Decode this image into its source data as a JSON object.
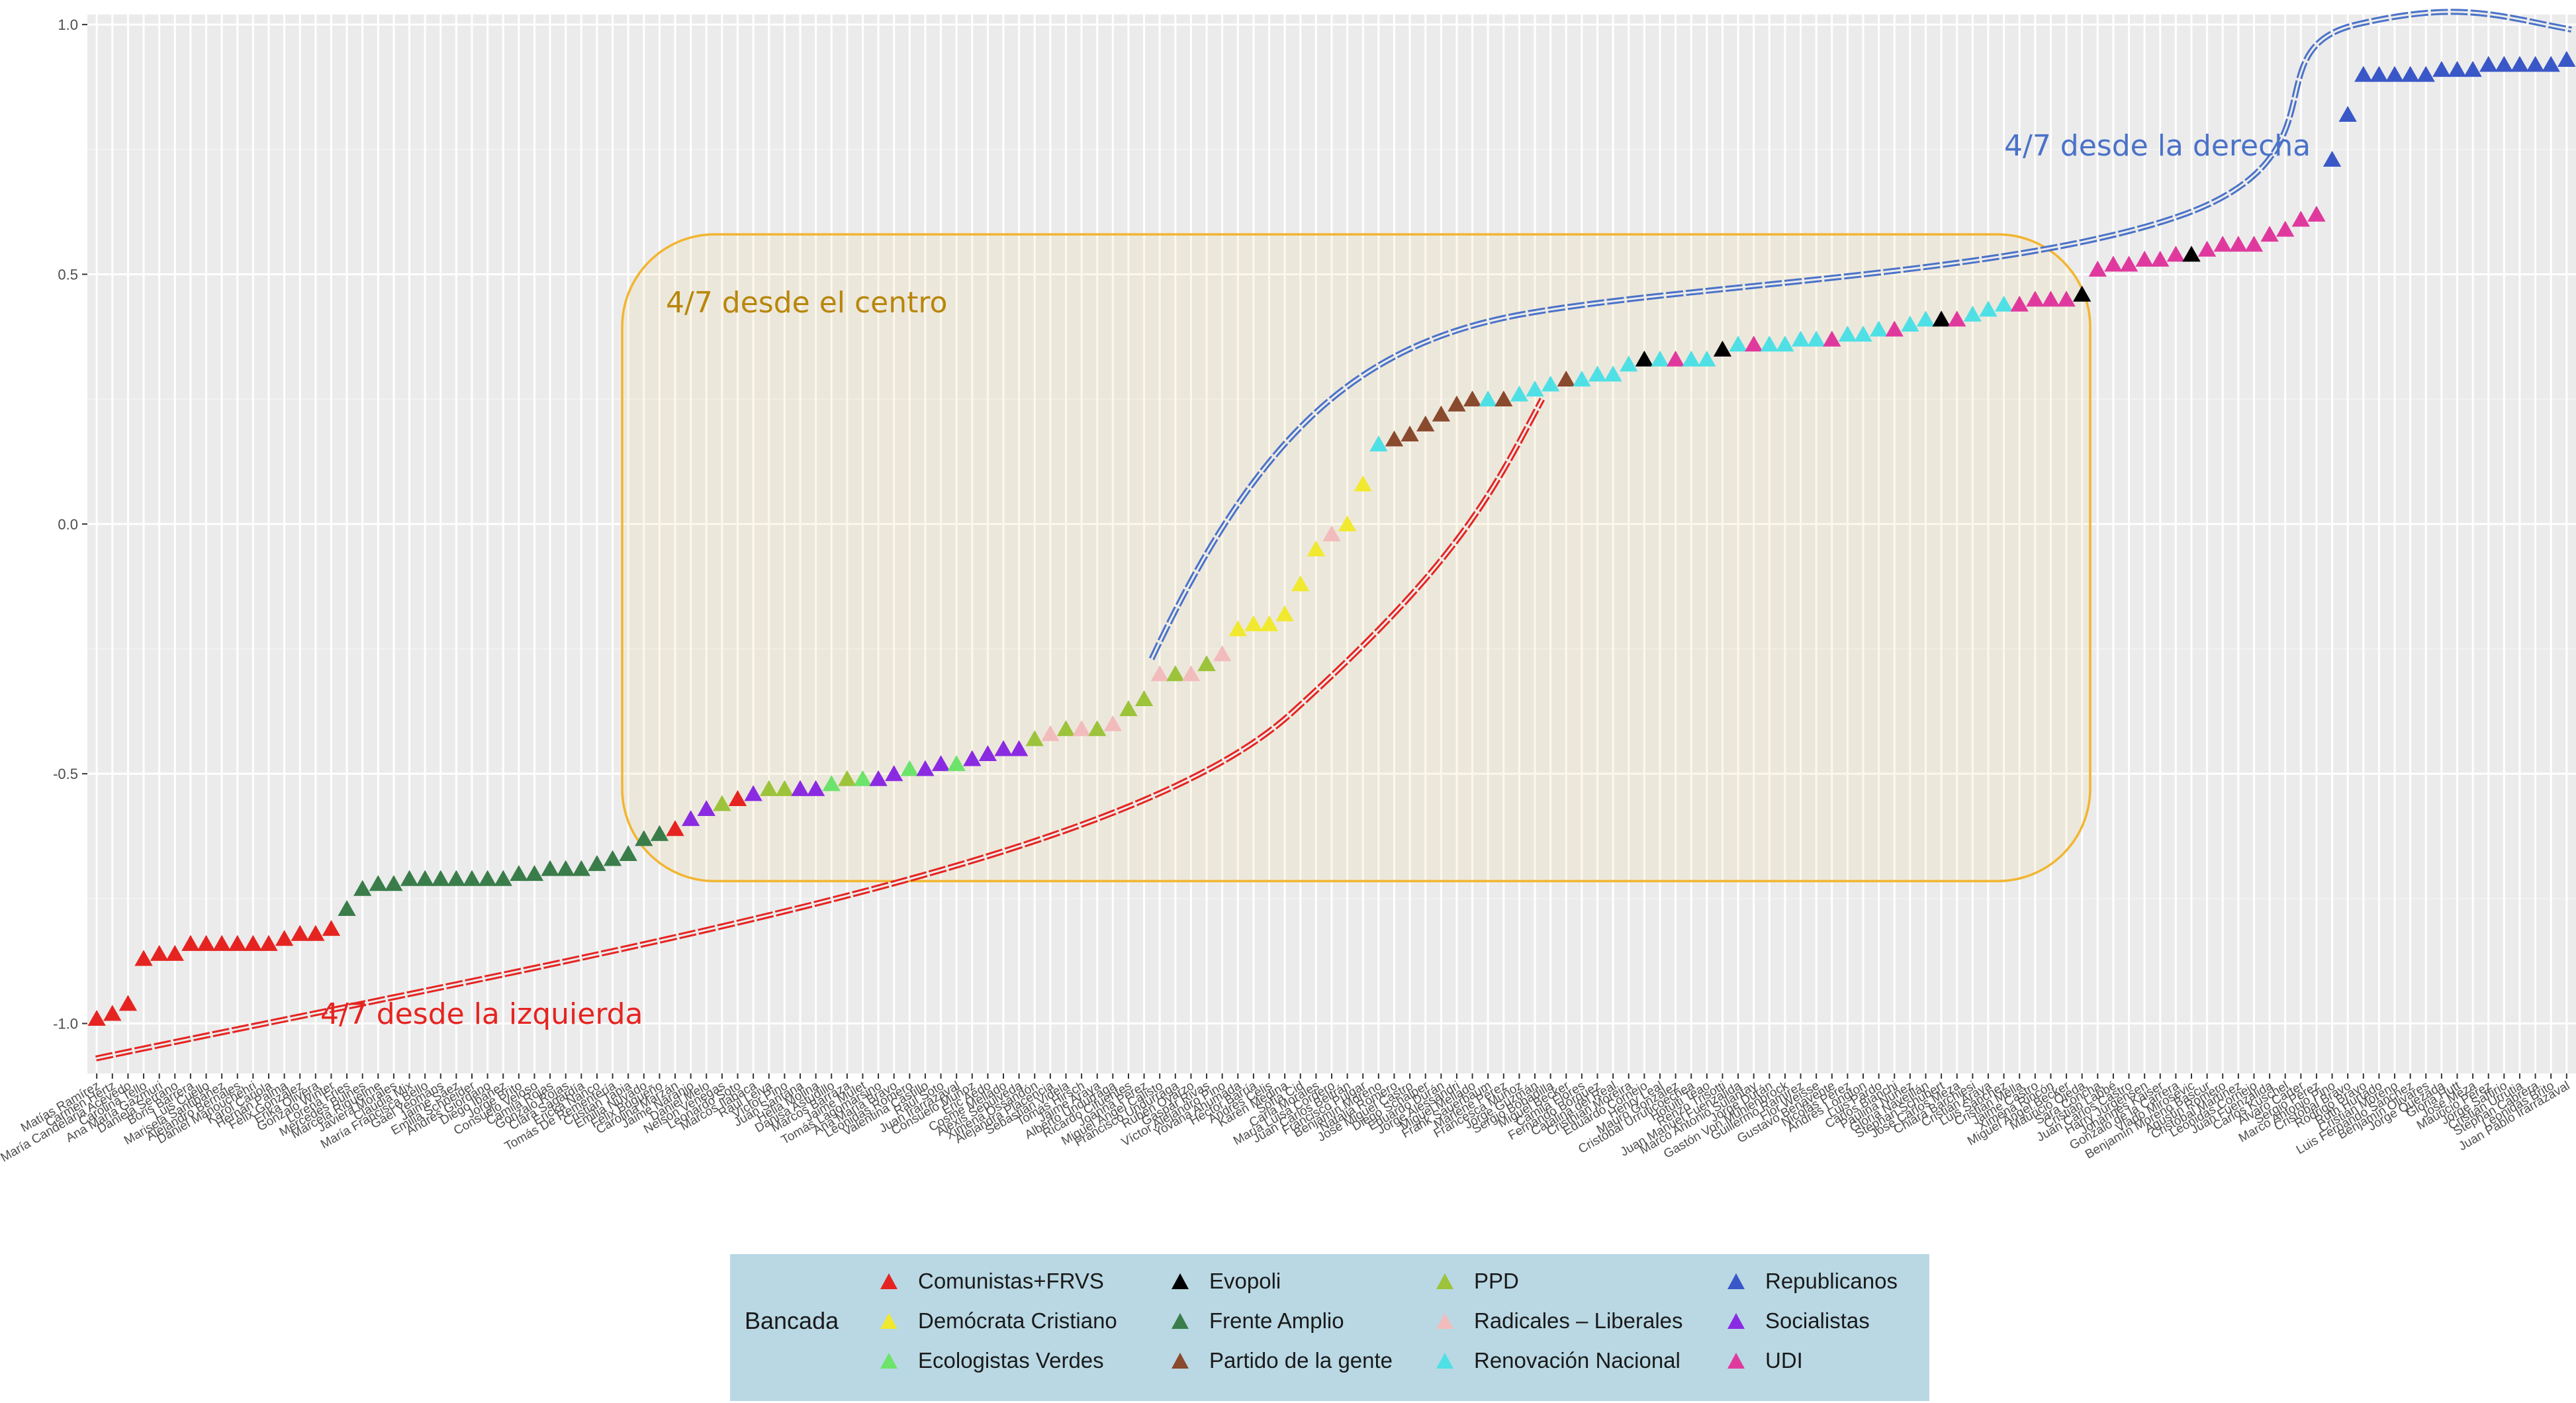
{
  "chart_data": {
    "type": "scatter",
    "title": "",
    "xlabel": "",
    "ylabel": "",
    "ylim": [
      -1.1,
      1.02
    ],
    "y_ticks": [
      "1.0",
      "0.5",
      "0.0",
      "-0.5",
      "-1.0"
    ],
    "grid": true,
    "legend_placement": "bottom",
    "legend_title": "Bancada",
    "series": [
      {
        "name": "Comunistas+FRVS",
        "color": "#e52421"
      },
      {
        "name": "Demócrata Cristiano",
        "color": "#f0e930"
      },
      {
        "name": "Ecologistas Verdes",
        "color": "#6ce36a"
      },
      {
        "name": "Evopoli",
        "color": "#000000"
      },
      {
        "name": "Frente Amplio",
        "color": "#3a7d4a"
      },
      {
        "name": "Partido de la gente",
        "color": "#8a4a2e"
      },
      {
        "name": "PPD",
        "color": "#9cc33a"
      },
      {
        "name": "Radicales – Liberales",
        "color": "#f2bcbc"
      },
      {
        "name": "Renovación Nacional",
        "color": "#4fe0e6"
      },
      {
        "name": "Republicanos",
        "color": "#3a57c8"
      },
      {
        "name": "Socialistas",
        "color": "#8a2be2"
      },
      {
        "name": "UDI",
        "color": "#e0399e"
      }
    ],
    "points": [
      {
        "label": "Matías Ramírez",
        "party": 0,
        "y": -0.99
      },
      {
        "label": "Carmen Hertz",
        "party": 0,
        "y": -0.98
      },
      {
        "label": "María Candelaria Acevedo",
        "party": 0,
        "y": -0.96
      },
      {
        "label": "Carolina Tello",
        "party": 0,
        "y": -0.87
      },
      {
        "label": "Ana María Gazmuri",
        "party": 0,
        "y": -0.86
      },
      {
        "label": "Daniela Serrano",
        "party": 0,
        "y": -0.86
      },
      {
        "label": "Boris Barrera",
        "party": 0,
        "y": -0.84
      },
      {
        "label": "Luis Cuello",
        "party": 0,
        "y": -0.84
      },
      {
        "label": "Marisela Santibáñez",
        "party": 0,
        "y": -0.84
      },
      {
        "label": "Alejandro Bernales",
        "party": 0,
        "y": -0.84
      },
      {
        "label": "Daniel Manouchehri",
        "party": 0,
        "y": -0.84
      },
      {
        "label": "Karol Cariola",
        "party": 0,
        "y": -0.84
      },
      {
        "label": "Hernán Palma",
        "party": 0,
        "y": -0.83
      },
      {
        "label": "Félix González",
        "party": 0,
        "y": -0.82
      },
      {
        "label": "Erika Olivera",
        "party": 0,
        "y": -0.82
      },
      {
        "label": "Gonzalo Winter",
        "party": 0,
        "y": -0.81
      },
      {
        "label": "Lorena Fries",
        "party": 4,
        "y": -0.77
      },
      {
        "label": "Mercedes Bulnes",
        "party": 4,
        "y": -0.73
      },
      {
        "label": "Marcela Riquelme",
        "party": 4,
        "y": -0.72
      },
      {
        "label": "Javiera Morales",
        "party": 4,
        "y": -0.72
      },
      {
        "label": "Claudia Mix",
        "party": 4,
        "y": -0.71
      },
      {
        "label": "María Francisca Bello",
        "party": 4,
        "y": -0.71
      },
      {
        "label": "Gael Yeomans",
        "party": 4,
        "y": -0.71
      },
      {
        "label": "Jaime Sáez",
        "party": 4,
        "y": -0.71
      },
      {
        "label": "Emilia Schneider",
        "party": 4,
        "y": -0.71
      },
      {
        "label": "Andrés Giordano",
        "party": 4,
        "y": -0.71
      },
      {
        "label": "Diego Ibáñez",
        "party": 4,
        "y": -0.71
      },
      {
        "label": "Jorge Brito",
        "party": 4,
        "y": -0.7
      },
      {
        "label": "Consuelo Veloso",
        "party": 4,
        "y": -0.7
      },
      {
        "label": "Camila Rojas",
        "party": 4,
        "y": -0.69
      },
      {
        "label": "Gonzalo Rojas",
        "party": 4,
        "y": -0.69
      },
      {
        "label": "Clara Sagardía",
        "party": 4,
        "y": -0.69
      },
      {
        "label": "Ericka Ñanco",
        "party": 4,
        "y": -0.68
      },
      {
        "label": "Tomás De Rementería",
        "party": 4,
        "y": -0.67
      },
      {
        "label": "Cristian Tapia",
        "party": 4,
        "y": -0.66
      },
      {
        "label": "Emilia Nuyado",
        "party": 4,
        "y": -0.63
      },
      {
        "label": "Félix Bugueño",
        "party": 4,
        "y": -0.62
      },
      {
        "label": "Carolina Marzán",
        "party": 0,
        "y": -0.61
      },
      {
        "label": "Jaime Naranjo",
        "party": 10,
        "y": -0.59
      },
      {
        "label": "Daniel Melo",
        "party": 10,
        "y": -0.57
      },
      {
        "label": "Nelson Venegas",
        "party": 6,
        "y": -0.56
      },
      {
        "label": "Leonardo Soto",
        "party": 0,
        "y": -0.55
      },
      {
        "label": "Marcos Ilabaca",
        "party": 10,
        "y": -0.54
      },
      {
        "label": "Raúl Leiva",
        "party": 6,
        "y": -0.53
      },
      {
        "label": "Víctor Pino",
        "party": 6,
        "y": -0.53
      },
      {
        "label": "Juan Santana",
        "party": 10,
        "y": -0.53
      },
      {
        "label": "Helia Molina",
        "party": 10,
        "y": -0.53
      },
      {
        "label": "Danisa Astudillo",
        "party": 2,
        "y": -0.52
      },
      {
        "label": "Marcos Barraza",
        "party": 6,
        "y": -0.51
      },
      {
        "label": "Jaime Mulet",
        "party": 2,
        "y": -0.51
      },
      {
        "label": "Tomás Lagomarsino",
        "party": 10,
        "y": -0.51
      },
      {
        "label": "Ana María Bravo",
        "party": 10,
        "y": -0.5
      },
      {
        "label": "Leonidas Romero",
        "party": 2,
        "y": -0.49
      },
      {
        "label": "Valentina Castillo",
        "party": 10,
        "y": -0.49
      },
      {
        "label": "Raúl Soto",
        "party": 10,
        "y": -0.48
      },
      {
        "label": "Juan Irarrázaval",
        "party": 2,
        "y": -0.48
      },
      {
        "label": "Consuelo Muñoz",
        "party": 10,
        "y": -0.47
      },
      {
        "label": "Eric Aedo",
        "party": 10,
        "y": -0.46
      },
      {
        "label": "Cosme Mellado",
        "party": 10,
        "y": -0.45
      },
      {
        "label": "Alexis Sepúlveda",
        "party": 10,
        "y": -0.45
      },
      {
        "label": "Ximena Ossandón",
        "party": 6,
        "y": -0.43
      },
      {
        "label": "Alejandra Placencia",
        "party": 7,
        "y": -0.42
      },
      {
        "label": "Sebastián Videla",
        "party": 6,
        "y": -0.41
      },
      {
        "label": "Tomás Hirsch",
        "party": 7,
        "y": -0.41
      },
      {
        "label": "Jaime Araya",
        "party": 6,
        "y": -0.41
      },
      {
        "label": "Alberto Undurraga",
        "party": 7,
        "y": -0.4
      },
      {
        "label": "Ricardo Cifuentes",
        "party": 6,
        "y": -0.37
      },
      {
        "label": "Joanna Pérez",
        "party": 6,
        "y": -0.35
      },
      {
        "label": "Miguel Ángel Calisto",
        "party": 7,
        "y": -0.3
      },
      {
        "label": "Francisco Undurraga",
        "party": 6,
        "y": -0.3
      },
      {
        "label": "Rubén Oyarzo",
        "party": 7,
        "y": -0.3
      },
      {
        "label": "Gaspar Rivas",
        "party": 6,
        "y": -0.28
      },
      {
        "label": "Víctor Alejandro Pino",
        "party": 7,
        "y": -0.26
      },
      {
        "label": "Yovana Ahumada",
        "party": 1,
        "y": -0.21
      },
      {
        "label": "Héctor Barría",
        "party": 1,
        "y": -0.2
      },
      {
        "label": "Andrés Celis",
        "party": 1,
        "y": -0.2
      },
      {
        "label": "Karen Medina",
        "party": 1,
        "y": -0.18
      },
      {
        "label": "Sofía Cid",
        "party": 1,
        "y": -0.12
      },
      {
        "label": "Carla Morales",
        "party": 1,
        "y": -0.05
      },
      {
        "label": "María Luisa Cordero",
        "party": 7,
        "y": -0.02
      },
      {
        "label": "Juan Carlos Beltrán",
        "party": 1,
        "y": 0.0
      },
      {
        "label": "Francisco Pulgar",
        "party": 1,
        "y": 0.08
      },
      {
        "label": "Benjamín Moreno",
        "party": 8,
        "y": 0.16
      },
      {
        "label": "Natalia Romero",
        "party": 5,
        "y": 0.17
      },
      {
        "label": "José Miguel Castro",
        "party": 5,
        "y": 0.18
      },
      {
        "label": "Diego Schalper",
        "party": 5,
        "y": 0.2
      },
      {
        "label": "Eduardo Durán",
        "party": 5,
        "y": 0.22
      },
      {
        "label": "Jorge Alessandri",
        "party": 5,
        "y": 0.24
      },
      {
        "label": "Miguel Mellado",
        "party": 5,
        "y": 0.25
      },
      {
        "label": "Frank Sauerbaum",
        "party": 8,
        "y": 0.25
      },
      {
        "label": "Marlene Pérez",
        "party": 5,
        "y": 0.25
      },
      {
        "label": "Francesca Muñoz",
        "party": 8,
        "y": 0.26
      },
      {
        "label": "Jorge Guzmán",
        "party": 8,
        "y": 0.27
      },
      {
        "label": "Sergio Bobadilla",
        "party": 8,
        "y": 0.28
      },
      {
        "label": "Miguel Becker",
        "party": 5,
        "y": 0.29
      },
      {
        "label": "Camila Flores",
        "party": 8,
        "y": 0.29
      },
      {
        "label": "Fernando Bórquez",
        "party": 8,
        "y": 0.3
      },
      {
        "label": "Catalina del Real",
        "party": 8,
        "y": 0.3
      },
      {
        "label": "Cristhian Moreira",
        "party": 8,
        "y": 0.32
      },
      {
        "label": "Eduardo Cornejo",
        "party": 3,
        "y": 0.33
      },
      {
        "label": "Henry Leal",
        "party": 8,
        "y": 0.33
      },
      {
        "label": "Mauro González",
        "party": 11,
        "y": 0.33
      },
      {
        "label": "Cristóbal Urruticoechea",
        "party": 8,
        "y": 0.33
      },
      {
        "label": "Hotuiti Teao",
        "party": 8,
        "y": 0.33
      },
      {
        "label": "Renzo Trisotti",
        "party": 3,
        "y": 0.35
      },
      {
        "label": "Juan Manuel Fuenzalida",
        "party": 8,
        "y": 0.36
      },
      {
        "label": "Marco Antonio Sulantay",
        "party": 11,
        "y": 0.36
      },
      {
        "label": "Jorge Durán",
        "party": 8,
        "y": 0.36
      },
      {
        "label": "Gastón Von Mühlenbrock",
        "party": 8,
        "y": 0.36
      },
      {
        "label": "Guillermo Ramírez",
        "party": 8,
        "y": 0.37
      },
      {
        "label": "Flor Weisse",
        "party": 8,
        "y": 0.37
      },
      {
        "label": "Gustavo Benavente",
        "party": 11,
        "y": 0.37
      },
      {
        "label": "Nicolás Pérez",
        "party": 8,
        "y": 0.38
      },
      {
        "label": "Andrés Longton",
        "party": 8,
        "y": 0.38
      },
      {
        "label": "Luis Pardo",
        "party": 8,
        "y": 0.39
      },
      {
        "label": "Carlos Bianchi",
        "party": 11,
        "y": 0.39
      },
      {
        "label": "Paulina Núñez",
        "party": 8,
        "y": 0.4
      },
      {
        "label": "Gloria Naveillán",
        "party": 8,
        "y": 0.41
      },
      {
        "label": "Stephan Schubert",
        "party": 3,
        "y": 0.41
      },
      {
        "label": "José Carlos Meza",
        "party": 11,
        "y": 0.41
      },
      {
        "label": "Chiara Barchiesi",
        "party": 8,
        "y": 0.42
      },
      {
        "label": "Cristián Araya",
        "party": 8,
        "y": 0.43
      },
      {
        "label": "Luis Sánchez",
        "party": 8,
        "y": 0.44
      },
      {
        "label": "Cristián Mella",
        "party": 11,
        "y": 0.44
      },
      {
        "label": "Jaime Castro",
        "party": 11,
        "y": 0.45
      },
      {
        "label": "Ximena Rincón",
        "party": 11,
        "y": 0.45
      },
      {
        "label": "Miguel Ángel Becker",
        "party": 11,
        "y": 0.45
      },
      {
        "label": "Mauricio Ojeda",
        "party": 3,
        "y": 0.46
      },
      {
        "label": "Sara Concha",
        "party": 11,
        "y": 0.51
      },
      {
        "label": "Cristián Labbé",
        "party": 11,
        "y": 0.52
      },
      {
        "label": "Juan Carlos Castro",
        "party": 11,
        "y": 0.52
      },
      {
        "label": "Harry Jürgensen",
        "party": 11,
        "y": 0.53
      },
      {
        "label": "Johannes Kaiser",
        "party": 11,
        "y": 0.53
      },
      {
        "label": "Gonzalo de la Carrera",
        "party": 11,
        "y": 0.54
      },
      {
        "label": "Vlado Mirosevic",
        "party": 3,
        "y": 0.54
      },
      {
        "label": "Benjamín Moreno Bascur",
        "party": 11,
        "y": 0.55
      },
      {
        "label": "Agustín Romero",
        "party": 11,
        "y": 0.56
      },
      {
        "label": "Cristóbal Martínez",
        "party": 11,
        "y": 0.56
      },
      {
        "label": "Leonidas Cornejo",
        "party": 11,
        "y": 0.56
      },
      {
        "label": "Juan Fuenzalida",
        "party": 11,
        "y": 0.58
      },
      {
        "label": "Carlos Kuschel",
        "party": 11,
        "y": 0.59
      },
      {
        "label": "Álvaro Carter",
        "party": 11,
        "y": 0.61
      },
      {
        "label": "Sergio Pérez",
        "party": 11,
        "y": 0.62
      },
      {
        "label": "Marco Antonio Pino",
        "party": 9,
        "y": 0.73
      },
      {
        "label": "Cristóbal Bravo",
        "party": 9,
        "y": 0.82
      },
      {
        "label": "Rodrigo Bravo",
        "party": 9,
        "y": 0.9
      },
      {
        "label": "Ruth Hurtado",
        "party": 9,
        "y": 0.9
      },
      {
        "label": "Cristián Moreno",
        "party": 9,
        "y": 0.9
      },
      {
        "label": "Luis Fernando Sánchez",
        "party": 9,
        "y": 0.9
      },
      {
        "label": "Benjamín Olivares",
        "party": 9,
        "y": 0.9
      },
      {
        "label": "Jorge Quezada",
        "party": 9,
        "y": 0.91
      },
      {
        "label": "Gloria Hutt",
        "party": 9,
        "y": 0.91
      },
      {
        "label": "José Meza",
        "party": 9,
        "y": 0.91
      },
      {
        "label": "Mauricio Pérez",
        "party": 9,
        "y": 0.92
      },
      {
        "label": "Jorge Saffirio",
        "party": 9,
        "y": 0.92
      },
      {
        "label": "Cristián Urrutia",
        "party": 9,
        "y": 0.92
      },
      {
        "label": "Stephan Cabrera",
        "party": 9,
        "y": 0.92
      },
      {
        "label": "Leonidas Brito",
        "party": 9,
        "y": 0.92
      },
      {
        "label": "Juan Pablo Irarrázaval",
        "party": 9,
        "y": 0.93
      }
    ],
    "annotations": [
      {
        "text": "4/7 desde el centro",
        "color": "#b8860b"
      },
      {
        "text": "4/7 desde la derecha",
        "color": "#4a72c8"
      },
      {
        "text": "4/7 desde la izquierda",
        "color": "#e52421"
      }
    ]
  }
}
